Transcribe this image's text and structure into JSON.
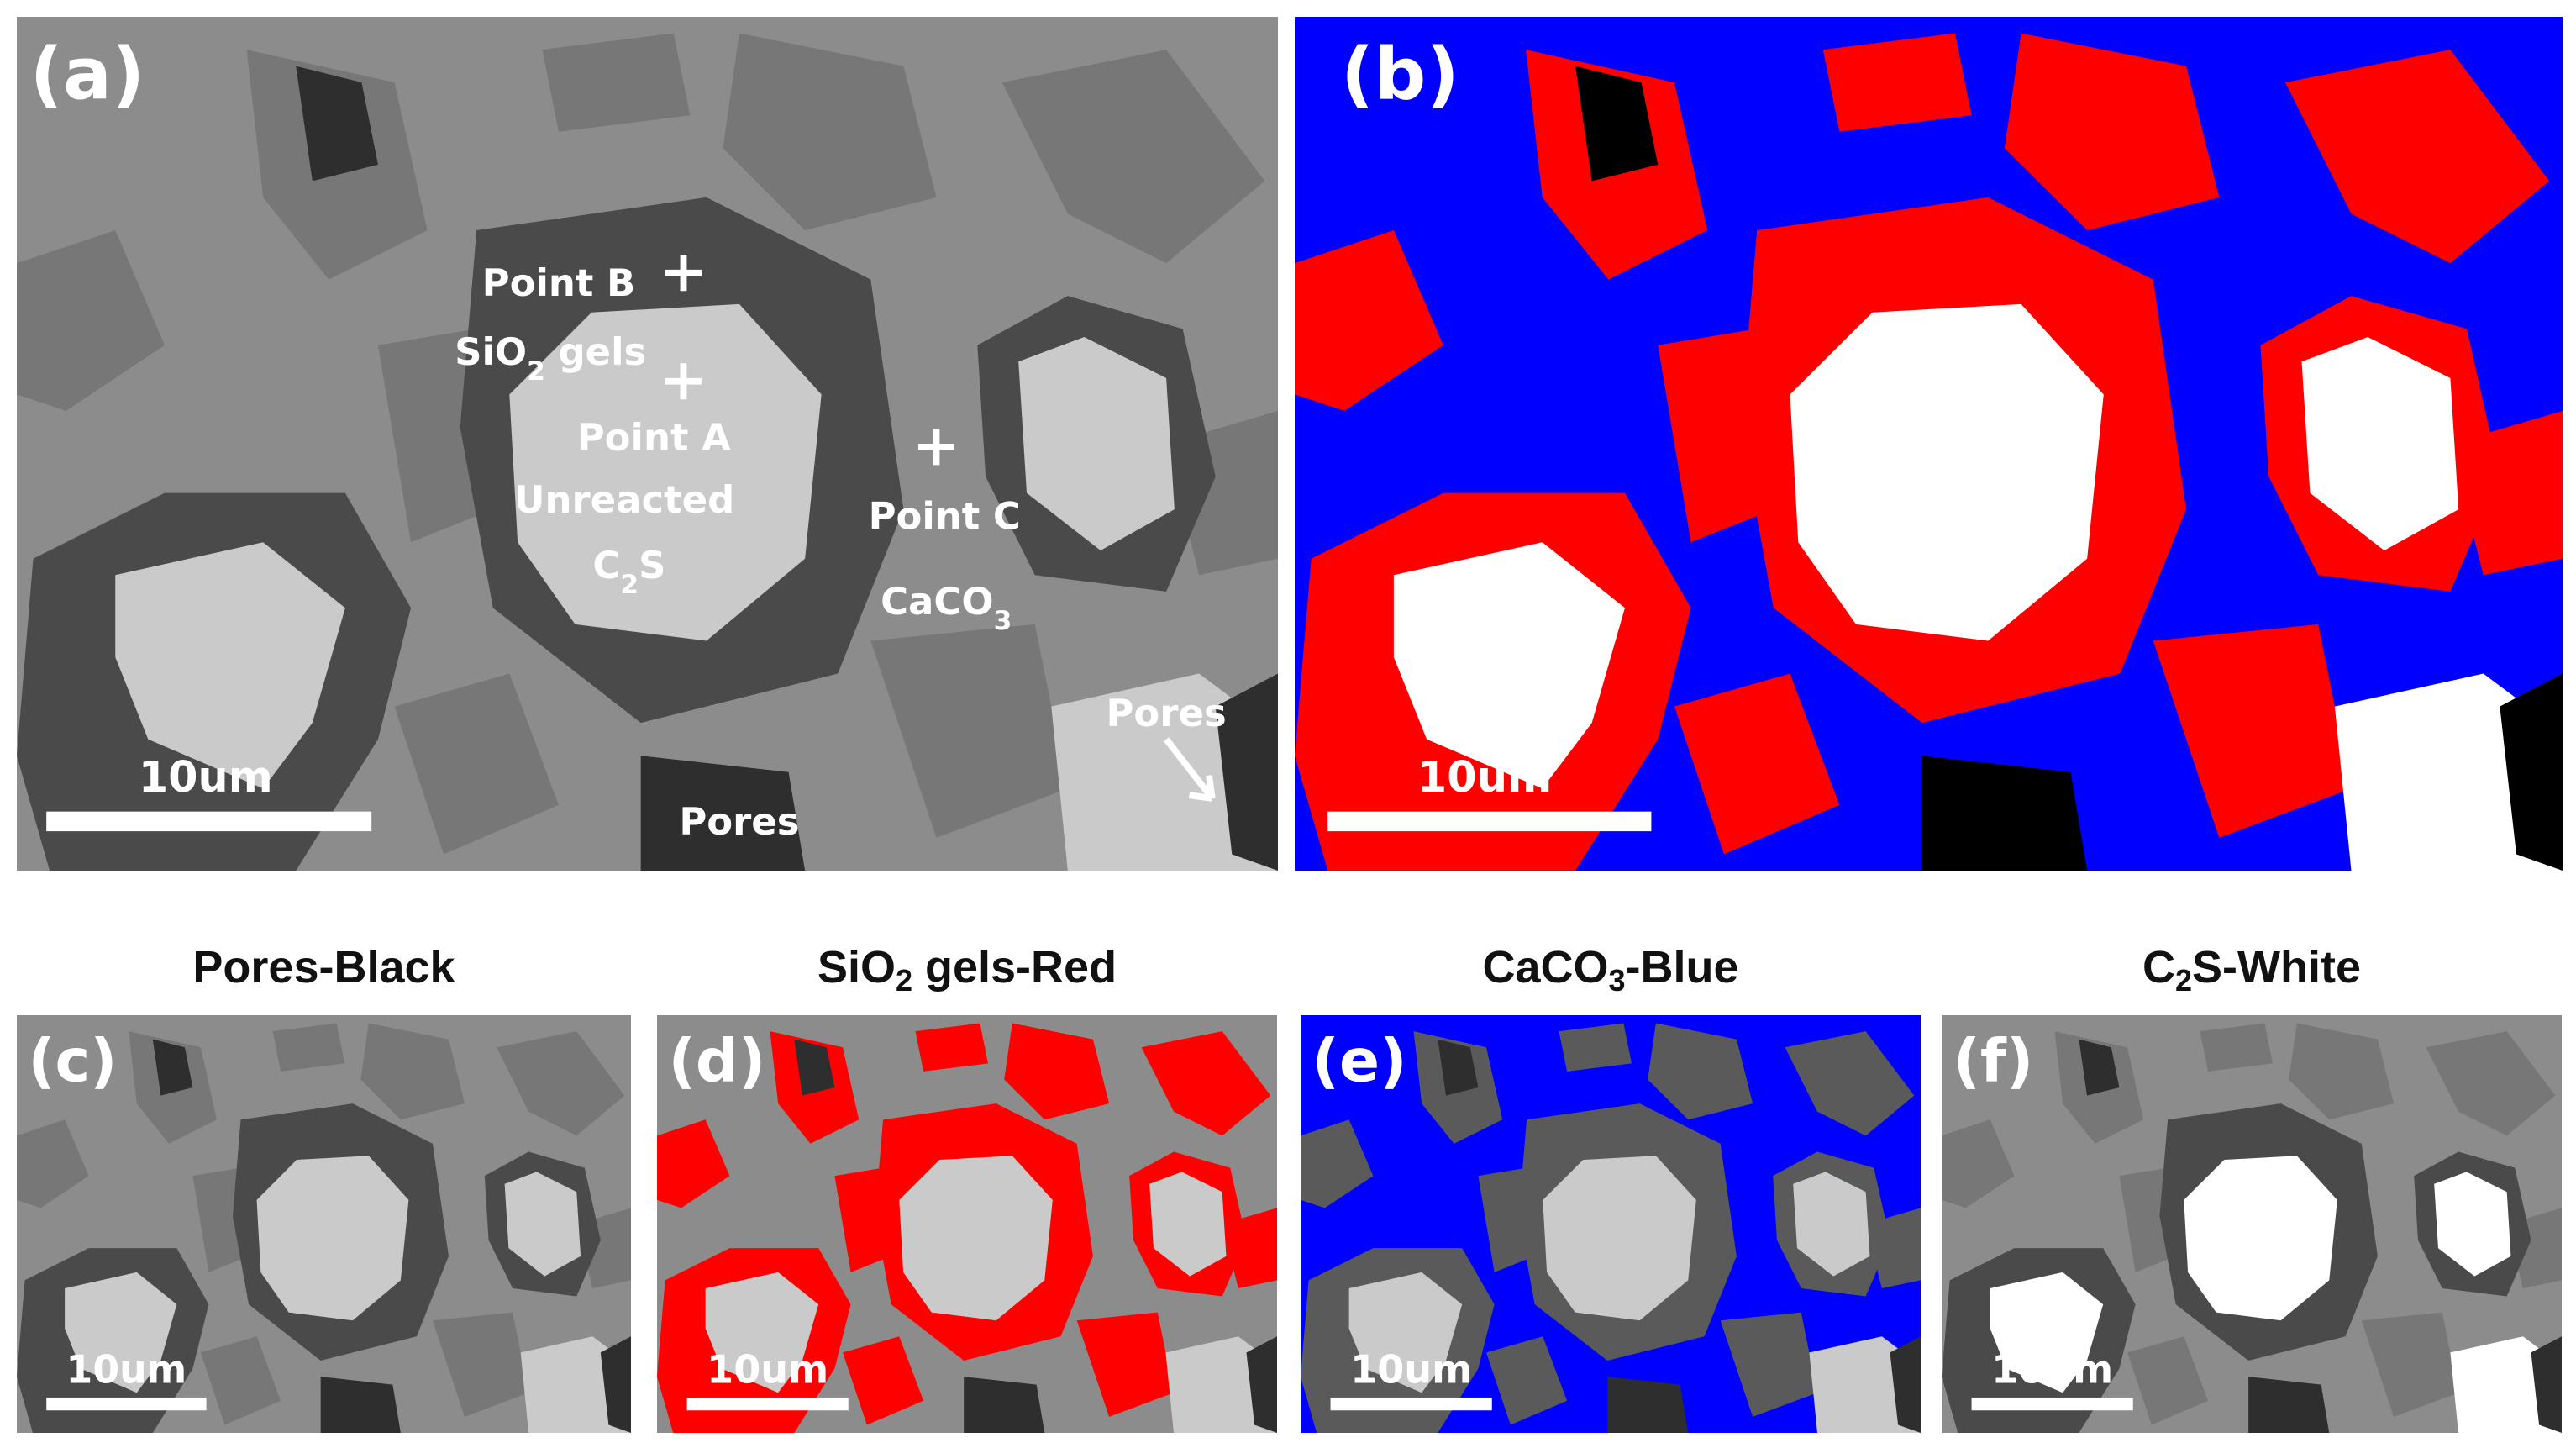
{
  "panels": [
    {
      "label": "(a)",
      "scale_bar": "10um",
      "annotations": [
        "Point B",
        {
          "pre": "SiO",
          "sub": "2",
          "post": " gels"
        },
        "Point A",
        "Unreacted",
        {
          "pre": "C",
          "sub": "2",
          "post": "S"
        },
        "Point C",
        {
          "pre": "CaCO",
          "sub": "3"
        },
        "Pores",
        "Pores"
      ]
    },
    {
      "label": "(b)",
      "scale_bar": "10um"
    },
    {
      "label": "(c)",
      "scale_bar": "10um",
      "title": "Pores-Black"
    },
    {
      "label": "(d)",
      "scale_bar": "10um",
      "title": {
        "pre": "SiO",
        "sub": "2",
        "post": " gels-Red"
      }
    },
    {
      "label": "(e)",
      "scale_bar": "10um",
      "title": {
        "pre": "CaCO",
        "sub": "3",
        "post": "-Blue"
      }
    },
    {
      "label": "(f)",
      "scale_bar": "10um",
      "title": {
        "pre": "C",
        "sub": "2",
        "post": "S-White"
      }
    }
  ]
}
